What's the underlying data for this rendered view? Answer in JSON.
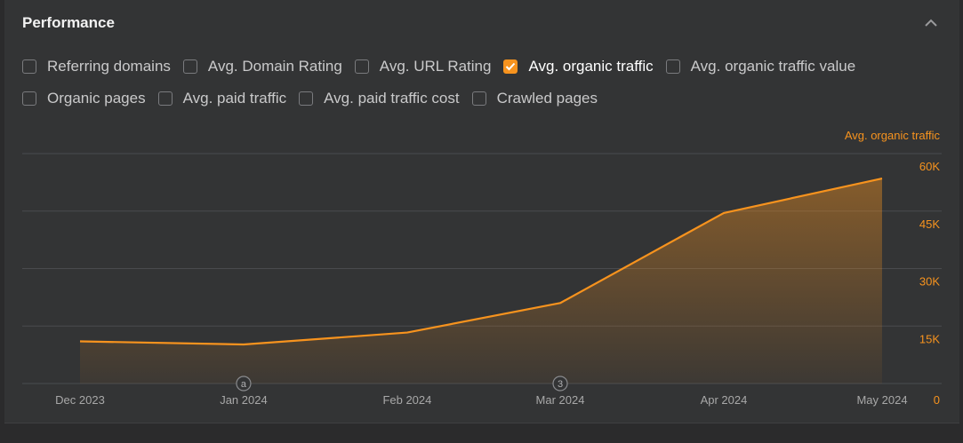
{
  "panel": {
    "title": "Performance",
    "collapse_icon": "chevron-up-icon"
  },
  "metrics": [
    {
      "label": "Referring domains",
      "checked": false
    },
    {
      "label": "Avg. Domain Rating",
      "checked": false
    },
    {
      "label": "Avg. URL Rating",
      "checked": false
    },
    {
      "label": "Avg. organic traffic",
      "checked": true
    },
    {
      "label": "Avg. organic traffic value",
      "checked": false
    },
    {
      "label": "Organic pages",
      "checked": false
    },
    {
      "label": "Avg. paid traffic",
      "checked": false
    },
    {
      "label": "Avg. paid traffic cost",
      "checked": false
    },
    {
      "label": "Crawled pages",
      "checked": false
    }
  ],
  "colors": {
    "accent": "#f7931e",
    "grid": "#4a4b4e",
    "axis_text": "#a8a8a8"
  },
  "chart_data": {
    "type": "area",
    "series": [
      {
        "name": "Avg. organic traffic",
        "x": [
          "2023-12-01",
          "2024-01-01",
          "2024-02-01",
          "2024-03-01",
          "2024-04-01",
          "2024-05-01"
        ],
        "values": [
          11000,
          10200,
          13300,
          21000,
          44500,
          53500
        ]
      }
    ],
    "x_ticks": [
      {
        "date": "2023-12-01",
        "label": "Dec 2023"
      },
      {
        "date": "2024-01-01",
        "label": "Jan 2024"
      },
      {
        "date": "2024-02-01",
        "label": "Feb 2024"
      },
      {
        "date": "2024-03-01",
        "label": "Mar 2024"
      },
      {
        "date": "2024-04-01",
        "label": "Apr 2024"
      },
      {
        "date": "2024-05-01",
        "label": "May 2024"
      }
    ],
    "y_axis_label": "Avg. organic traffic",
    "y_ticks": [
      {
        "value": 0,
        "label": "0"
      },
      {
        "value": 15000,
        "label": "15K"
      },
      {
        "value": 30000,
        "label": "30K"
      },
      {
        "value": 45000,
        "label": "45K"
      },
      {
        "value": 60000,
        "label": "60K"
      }
    ],
    "ylim": [
      0,
      60000
    ],
    "y_axis_side": "right",
    "grid": true,
    "annotations": [
      {
        "date": "2024-01-01",
        "marker": "a"
      },
      {
        "date": "2024-03-01",
        "marker": "3"
      }
    ]
  }
}
